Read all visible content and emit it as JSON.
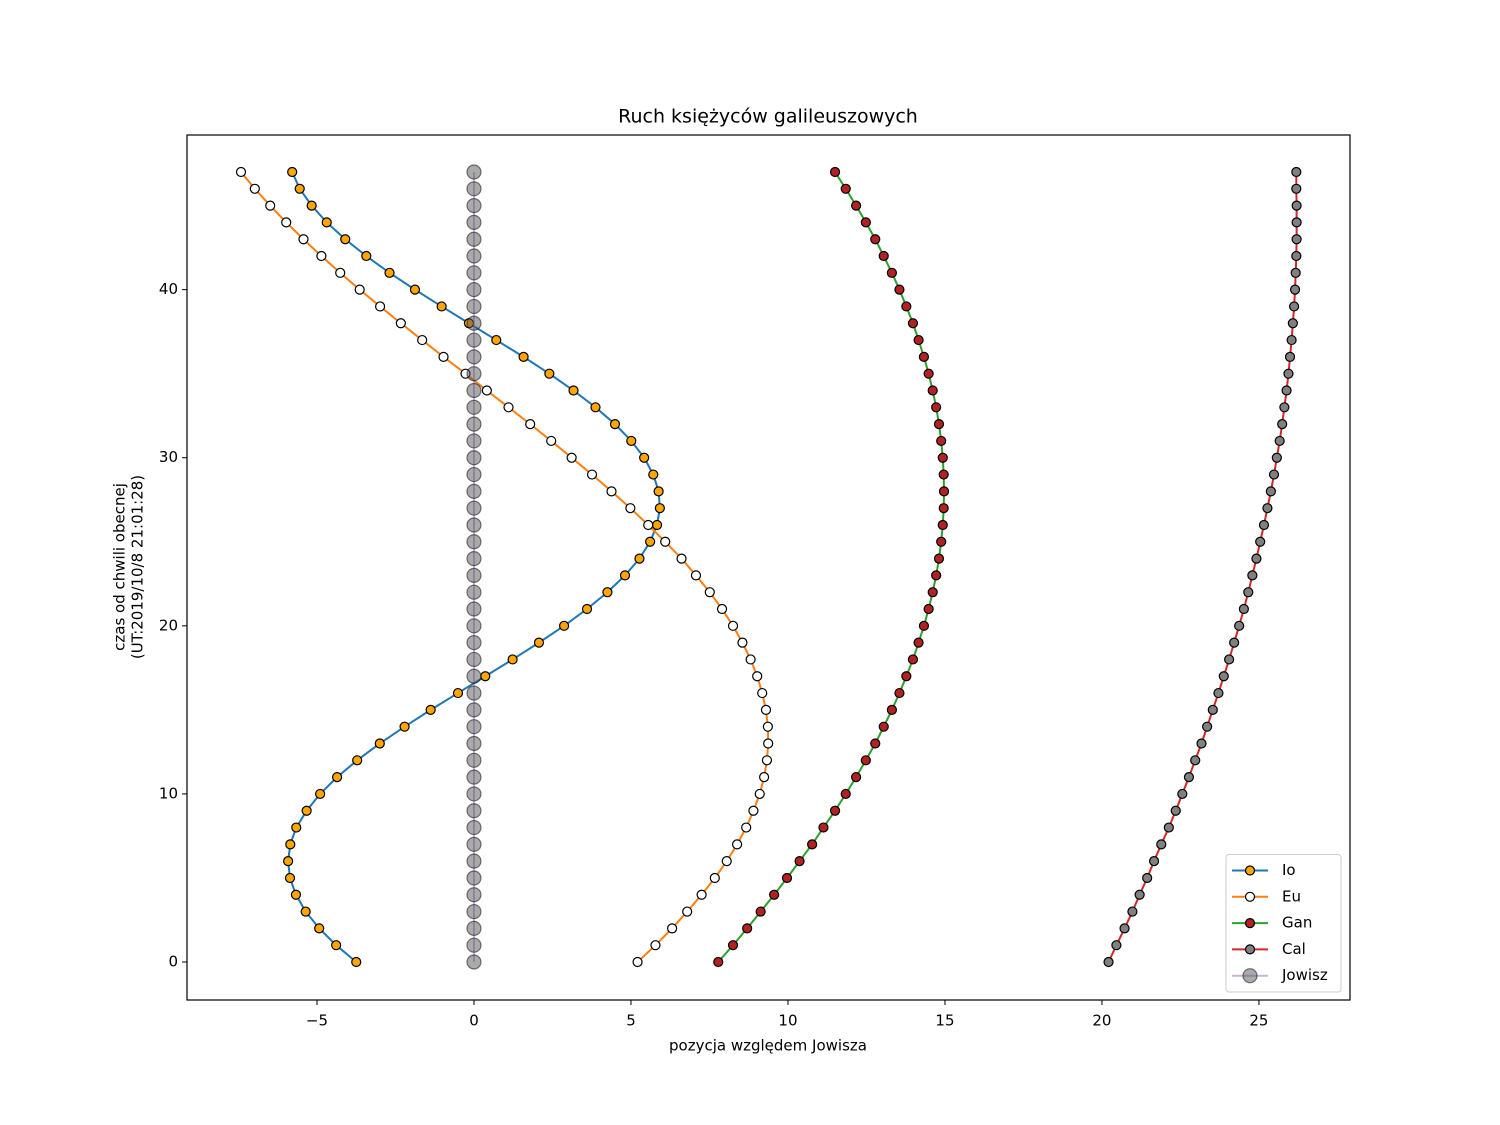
{
  "chart_data": {
    "type": "line",
    "title": "Ruch księżyców galileuszowych",
    "xlabel": "pozycja względem Jowisza",
    "ylabel": [
      "czas od chwili obecnej",
      "(UT:2019/10/8 21:01:28)"
    ],
    "xlim": [
      -9.14,
      27.9
    ],
    "ylim": [
      -2.26,
      49.2
    ],
    "xticks": [
      {
        "value": -5,
        "label": "−5"
      },
      0,
      5,
      10,
      15,
      20,
      25
    ],
    "yticks": [
      0,
      10,
      20,
      30,
      40
    ],
    "legend": "lower right",
    "y": [
      0,
      1,
      2,
      3,
      4,
      5,
      6,
      7,
      8,
      9,
      10,
      11,
      12,
      13,
      14,
      15,
      16,
      17,
      18,
      19,
      20,
      21,
      22,
      23,
      24,
      25,
      26,
      27,
      28,
      29,
      30,
      31,
      32,
      33,
      34,
      35,
      36,
      37,
      38,
      39,
      40,
      41,
      42,
      43,
      44,
      45,
      46,
      47
    ],
    "series": [
      {
        "name": "Io",
        "color": "#1f77b4",
        "marker_color": "#ffa500",
        "x": [
          -3.75,
          -4.39,
          -4.93,
          -5.36,
          -5.67,
          -5.86,
          -5.92,
          -5.85,
          -5.66,
          -5.33,
          -4.9,
          -4.36,
          -3.72,
          -3.0,
          -2.21,
          -1.38,
          -0.51,
          0.36,
          1.23,
          2.07,
          2.87,
          3.6,
          4.25,
          4.81,
          5.27,
          5.61,
          5.83,
          5.92,
          5.88,
          5.71,
          5.42,
          5.01,
          4.49,
          3.87,
          3.17,
          2.4,
          1.58,
          0.71,
          -0.16,
          -1.03,
          -1.88,
          -2.69,
          -3.43,
          -4.1,
          -4.69,
          -5.17,
          -5.55,
          -5.79
        ]
      },
      {
        "name": "Eu",
        "color": "#ff7f0e",
        "marker_color": "#ffffff",
        "x": [
          5.21,
          5.78,
          6.31,
          6.79,
          7.25,
          7.67,
          8.05,
          8.38,
          8.67,
          8.9,
          9.1,
          9.24,
          9.33,
          9.37,
          9.36,
          9.3,
          9.18,
          9.02,
          8.81,
          8.55,
          8.25,
          7.9,
          7.51,
          7.07,
          6.61,
          6.09,
          5.55,
          4.98,
          4.38,
          3.76,
          3.11,
          2.46,
          1.79,
          1.1,
          0.41,
          -0.27,
          -0.97,
          -1.65,
          -2.33,
          -2.99,
          -3.64,
          -4.26,
          -4.86,
          -5.43,
          -5.98,
          -6.49,
          -6.98,
          -7.42
        ]
      },
      {
        "name": "Gan",
        "color": "#2ca02c",
        "marker_color": "#b22222",
        "x": [
          7.78,
          8.25,
          8.7,
          9.13,
          9.56,
          9.97,
          10.37,
          10.77,
          11.13,
          11.5,
          11.84,
          12.17,
          12.48,
          12.78,
          13.05,
          13.31,
          13.55,
          13.77,
          13.98,
          14.16,
          14.33,
          14.48,
          14.61,
          14.72,
          14.81,
          14.88,
          14.93,
          14.96,
          14.97,
          14.96,
          14.93,
          14.88,
          14.81,
          14.72,
          14.61,
          14.48,
          14.33,
          14.16,
          13.98,
          13.77,
          13.55,
          13.31,
          13.05,
          12.78,
          12.48,
          12.17,
          11.84,
          11.5
        ]
      },
      {
        "name": "Cal",
        "color": "#d62728",
        "marker_color": "#808080",
        "x": [
          20.21,
          20.46,
          20.72,
          20.97,
          21.2,
          21.44,
          21.66,
          21.89,
          22.13,
          22.35,
          22.56,
          22.77,
          22.97,
          23.17,
          23.35,
          23.53,
          23.71,
          23.88,
          24.05,
          24.21,
          24.37,
          24.52,
          24.66,
          24.79,
          24.92,
          25.04,
          25.16,
          25.27,
          25.38,
          25.48,
          25.57,
          25.66,
          25.74,
          25.81,
          25.88,
          25.94,
          25.99,
          26.04,
          26.08,
          26.12,
          26.15,
          26.17,
          26.19,
          26.2,
          26.2,
          26.2,
          26.19,
          26.19
        ]
      },
      {
        "name": "Jowisz",
        "color": "#9467bd",
        "marker_color": "#555555",
        "alpha": 0.5,
        "marker_size": 7,
        "x": [
          0,
          0,
          0,
          0,
          0,
          0,
          0,
          0,
          0,
          0,
          0,
          0,
          0,
          0,
          0,
          0,
          0,
          0,
          0,
          0,
          0,
          0,
          0,
          0,
          0,
          0,
          0,
          0,
          0,
          0,
          0,
          0,
          0,
          0,
          0,
          0,
          0,
          0,
          0,
          0,
          0,
          0,
          0,
          0,
          0,
          0,
          0,
          0
        ]
      }
    ]
  }
}
